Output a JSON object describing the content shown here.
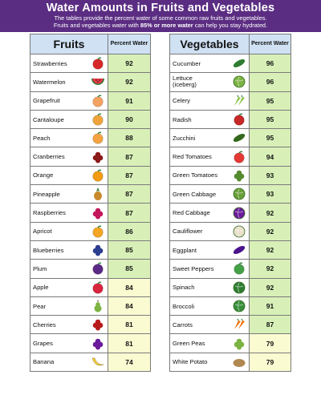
{
  "title": "Water Amounts in Fruits and Vegetables",
  "subtitle_line1": "The tables provide the percent water of some common raw fruits and vegetables.",
  "subtitle_line2_pre": "Fruits and vegetables water with ",
  "subtitle_line2_bold": "85% or more water",
  "subtitle_line2_post": " can help you stay hydrated.",
  "colors": {
    "banner": "#5b2d82",
    "header": "#cfe1f3",
    "high": "#d8f0b8",
    "low": "#fbfbd2"
  },
  "fruits": {
    "header": "Fruits",
    "pct_header": "Percent Water",
    "rows": [
      {
        "name": "Strawberries",
        "value": "92",
        "icon": "strawberry-icon",
        "color": "#d62828"
      },
      {
        "name": "Watermelon",
        "value": "92",
        "icon": "watermelon-icon",
        "color": "#e63946"
      },
      {
        "name": "Grapefruit",
        "value": "91",
        "icon": "grapefruit-icon",
        "color": "#f4a261"
      },
      {
        "name": "Cantaloupe",
        "value": "90",
        "icon": "cantaloupe-icon",
        "color": "#f0a33a"
      },
      {
        "name": "Peach",
        "value": "88",
        "icon": "peach-icon",
        "color": "#f4a340"
      },
      {
        "name": "Cranberries",
        "value": "87",
        "icon": "cranberries-icon",
        "color": "#8b1a1a"
      },
      {
        "name": "Orange",
        "value": "87",
        "icon": "orange-icon",
        "color": "#f39c12"
      },
      {
        "name": "Pineapple",
        "value": "87",
        "icon": "pineapple-icon",
        "color": "#c88a2c"
      },
      {
        "name": "Raspberries",
        "value": "87",
        "icon": "raspberries-icon",
        "color": "#c2185b"
      },
      {
        "name": "Apricot",
        "value": "86",
        "icon": "apricot-icon",
        "color": "#f5a623"
      },
      {
        "name": "Blueberries",
        "value": "85",
        "icon": "blueberries-icon",
        "color": "#2c3e8f"
      },
      {
        "name": "Plum",
        "value": "85",
        "icon": "plum-icon",
        "color": "#5b2a86"
      },
      {
        "name": "Apple",
        "value": "84",
        "icon": "apple-icon",
        "color": "#d7263d"
      },
      {
        "name": "Pear",
        "value": "84",
        "icon": "pear-icon",
        "color": "#7cb342"
      },
      {
        "name": "Cherries",
        "value": "81",
        "icon": "cherries-icon",
        "color": "#b71c1c"
      },
      {
        "name": "Grapes",
        "value": "81",
        "icon": "grapes-icon",
        "color": "#6a1b9a"
      },
      {
        "name": "Banana",
        "value": "74",
        "icon": "banana-icon",
        "color": "#f4d03f"
      }
    ]
  },
  "vegetables": {
    "header": "Vegetables",
    "pct_header": "Percent Water",
    "rows": [
      {
        "name": "Cucumber",
        "value": "96",
        "icon": "cucumber-icon",
        "color": "#2e7d32"
      },
      {
        "name": "Lettuce (iceberg)",
        "value": "96",
        "icon": "lettuce-icon",
        "color": "#7cb342"
      },
      {
        "name": "Celery",
        "value": "95",
        "icon": "celery-icon",
        "color": "#8bc34a"
      },
      {
        "name": "Radish",
        "value": "95",
        "icon": "radish-icon",
        "color": "#c62828"
      },
      {
        "name": "Zucchini",
        "value": "95",
        "icon": "zucchini-icon",
        "color": "#33691e"
      },
      {
        "name": "Red Tomatoes",
        "value": "94",
        "icon": "tomato-icon",
        "color": "#e53935"
      },
      {
        "name": "Green Tomatoes",
        "value": "93",
        "icon": "green-tomatoes-icon",
        "color": "#558b2f"
      },
      {
        "name": "Green Cabbage",
        "value": "93",
        "icon": "cabbage-icon",
        "color": "#689f38"
      },
      {
        "name": "Red Cabbage",
        "value": "92",
        "icon": "red-cabbage-icon",
        "color": "#6a1b9a"
      },
      {
        "name": "Cauliflower",
        "value": "92",
        "icon": "cauliflower-icon",
        "color": "#e8e0c8"
      },
      {
        "name": "Eggplant",
        "value": "92",
        "icon": "eggplant-icon",
        "color": "#4a148c"
      },
      {
        "name": "Sweet Peppers",
        "value": "92",
        "icon": "peppers-icon",
        "color": "#43a047"
      },
      {
        "name": "Spinach",
        "value": "92",
        "icon": "spinach-icon",
        "color": "#2e7d32"
      },
      {
        "name": "Broccoli",
        "value": "91",
        "icon": "broccoli-icon",
        "color": "#388e3c"
      },
      {
        "name": "Carrots",
        "value": "87",
        "icon": "carrots-icon",
        "color": "#ef6c00"
      },
      {
        "name": "Green Peas",
        "value": "79",
        "icon": "peas-icon",
        "color": "#7cb342"
      },
      {
        "name": "White Potato",
        "value": "79",
        "icon": "potato-icon",
        "color": "#b08850"
      }
    ]
  }
}
